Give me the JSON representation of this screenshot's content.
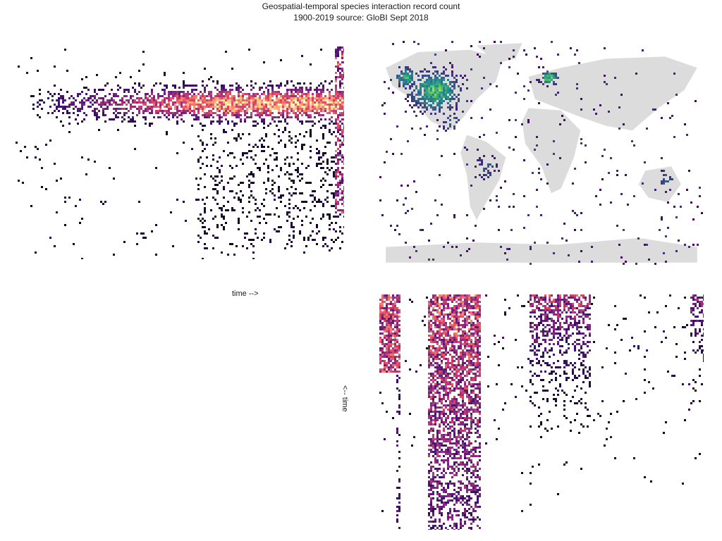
{
  "chart_data": [
    {
      "type": "heatmap",
      "panel": "latitude-vs-time",
      "x_axis_label": "time -->",
      "x_range": [
        1900,
        2019
      ],
      "y_range_latitude": [
        90,
        -90
      ],
      "color_scale": "magma (dark purple = few records, light orange = many)",
      "description_of_values": "binned record counts by latitude band (rows) and year (columns); densest 25N-60N after ~1960"
    },
    {
      "type": "heatmap",
      "panel": "world-map",
      "x_range_longitude": [
        -180,
        180
      ],
      "y_range_latitude": [
        90,
        -90
      ],
      "color_scale": "viridis-like (purple = few, green = many)",
      "hotspots": [
        "North America (USA)",
        "Western Europe",
        "Central America",
        "Eastern Australia",
        "Amazon basin"
      ]
    },
    {
      "type": "heatmap",
      "panel": "longitude-vs-time",
      "y_axis_label": "<-- time",
      "x_range_longitude": [
        -180,
        180
      ],
      "y_range": [
        2019,
        1900
      ],
      "color_scale": "magma",
      "description_of_values": "densest band near -100 to -70 longitude (Americas); secondary band near 0 to 20 (Europe)"
    }
  ],
  "header": {
    "title": "Geospatial-temporal species interaction record count",
    "subtitle": "1900-2019 source: GloBI Sept 2018"
  },
  "labels": {
    "x_time": "time -->",
    "y_time": "<-- time"
  },
  "colors": {
    "background": "#ffffff",
    "land": "#dcdcdc",
    "magma_low": "#1b0c41",
    "magma_mid": "#8c2981",
    "magma_high": "#fdd49e",
    "viridis_low": "#3b2a6b",
    "viridis_high": "#6ece58"
  }
}
